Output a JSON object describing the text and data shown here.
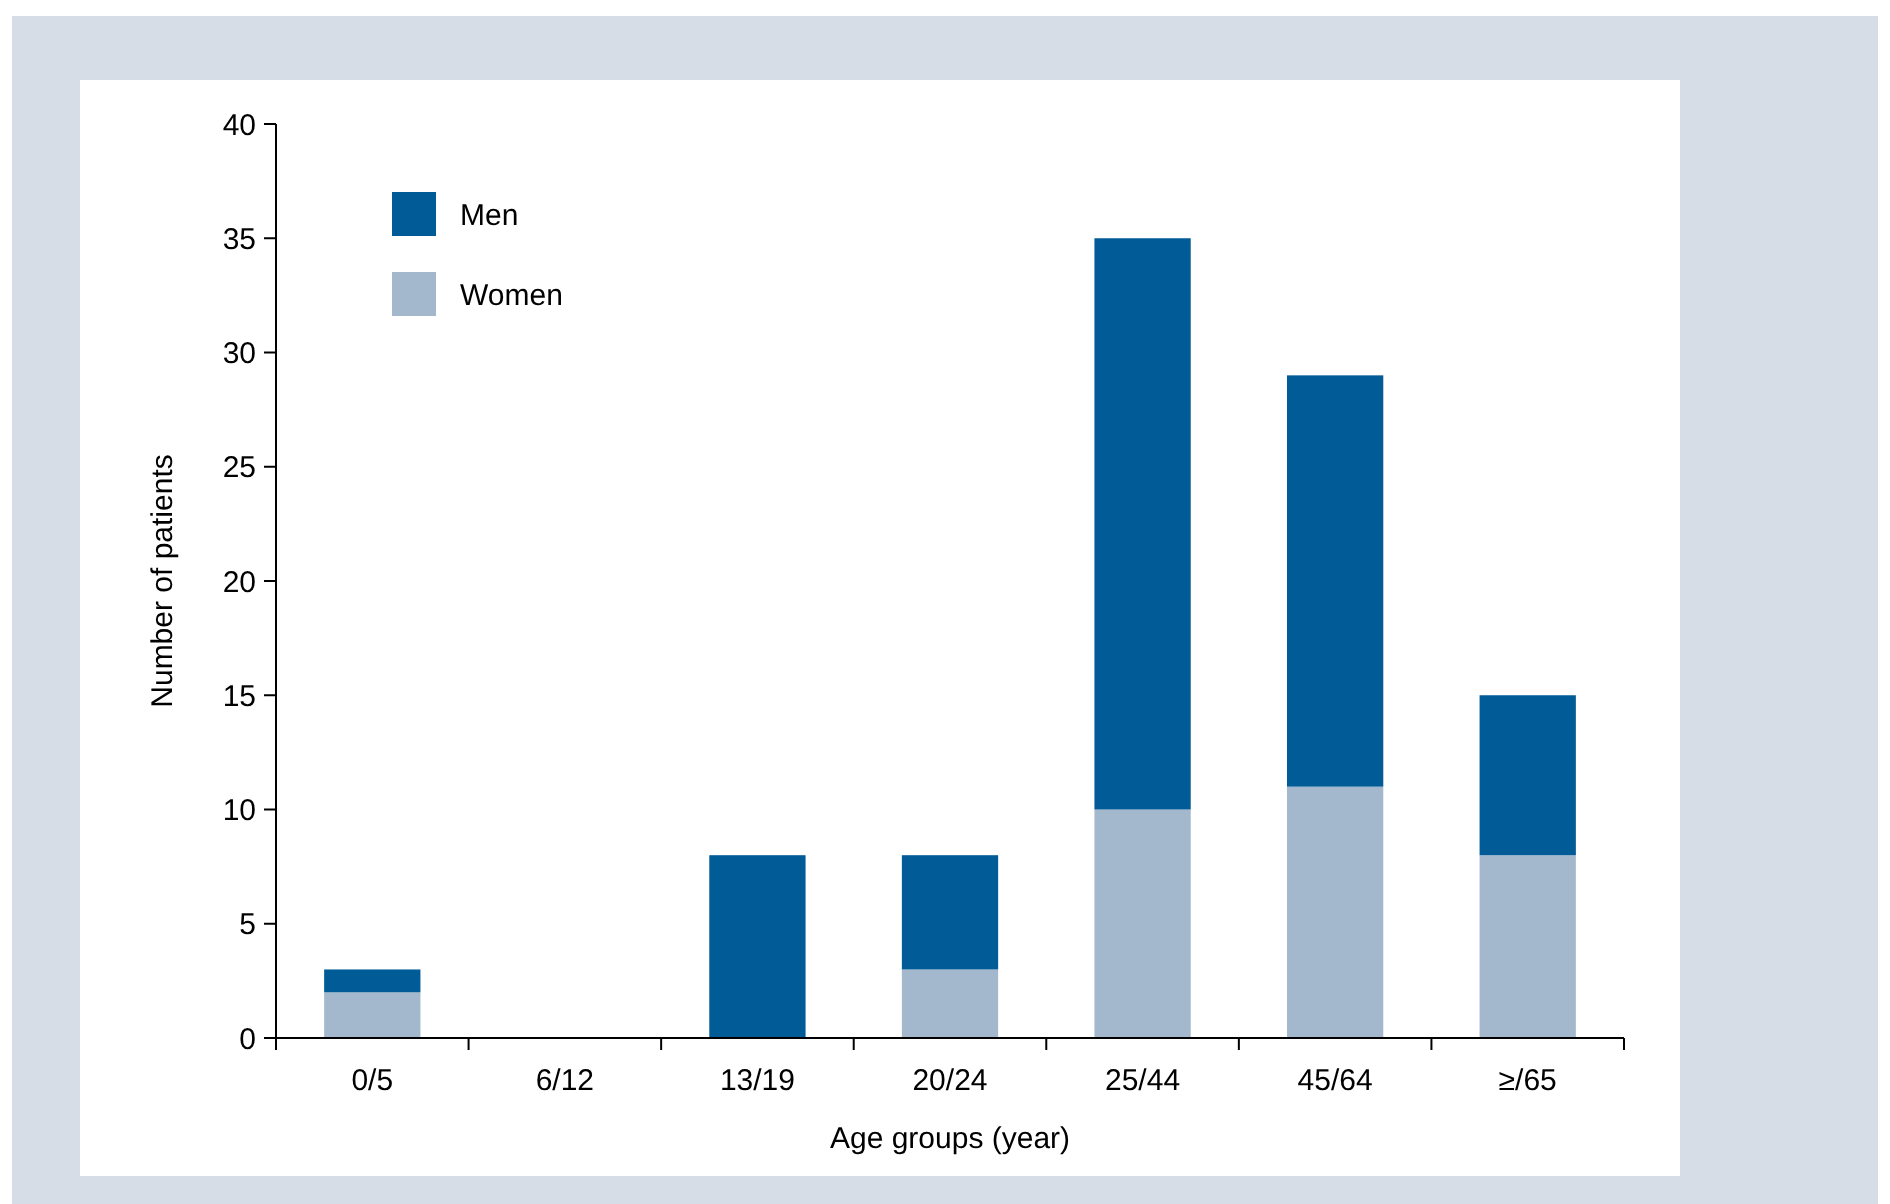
{
  "chart_data": {
    "type": "bar",
    "stacked": true,
    "xlabel": "Age groups (year)",
    "ylabel": "Number of patients",
    "categories": [
      "0/5",
      "6/12",
      "13/19",
      "20/24",
      "25/44",
      "45/64",
      "≥/65"
    ],
    "series": [
      {
        "name": "Women",
        "color": "#a3b8cc",
        "values": [
          2,
          0,
          0,
          3,
          10,
          11,
          8
        ]
      },
      {
        "name": "Men",
        "color": "#005b96",
        "values": [
          1,
          0,
          8,
          5,
          25,
          18,
          7
        ]
      }
    ],
    "ylim": [
      0,
      40
    ],
    "yticks": [
      0,
      5,
      10,
      15,
      20,
      25,
      30,
      35,
      40
    ],
    "legend": "top left",
    "grid": false
  }
}
